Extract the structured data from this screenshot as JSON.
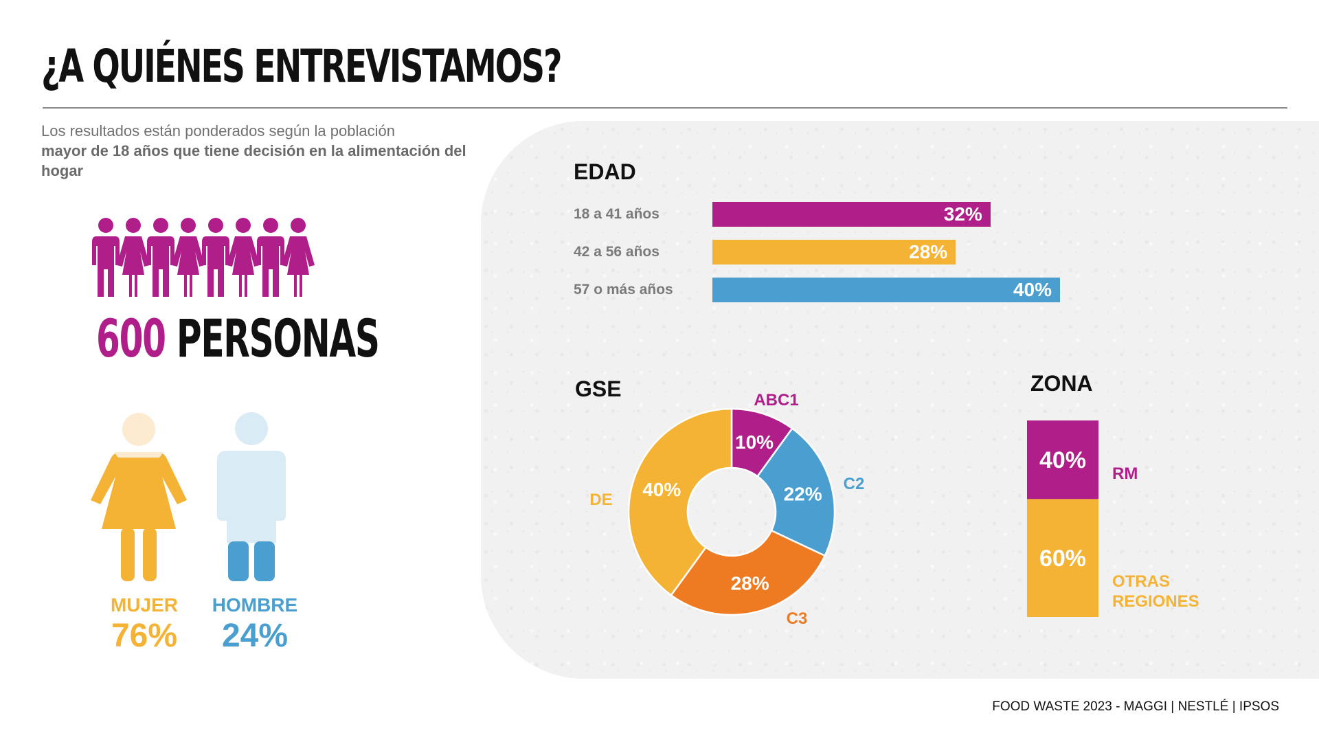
{
  "title": "¿A QUIÉNES ENTREVISTAMOS?",
  "subtitle": {
    "line1": "Los resultados están ponderados según la población",
    "bold": "mayor de 18 años que tiene decisión en la alimentación del hogar"
  },
  "sample": {
    "number": "600",
    "word": "PERSONAS"
  },
  "gender": [
    {
      "label": "MUJER",
      "value": "76%",
      "color": "#f5b335"
    },
    {
      "label": "HOMBRE",
      "value": "24%",
      "color": "#4a9fd0"
    }
  ],
  "colors": {
    "magenta": "#b01e8a",
    "yellow": "#f5b335",
    "blue": "#4a9fd0",
    "orange": "#ee7a22"
  },
  "chart_data": [
    {
      "type": "bar",
      "title": "EDAD",
      "categories": [
        "18 a 41 años",
        "42 a 56 años",
        "57 o más años"
      ],
      "values": [
        32,
        28,
        40
      ],
      "labels": [
        "32%",
        "28%",
        "40%"
      ],
      "colors": [
        "#b01e8a",
        "#f5b335",
        "#4a9fd0"
      ]
    },
    {
      "type": "pie",
      "title": "GSE",
      "categories": [
        "ABC1",
        "C2",
        "C3",
        "DE"
      ],
      "values": [
        10,
        22,
        28,
        40
      ],
      "labels": [
        "10%",
        "22%",
        "28%",
        "40%"
      ],
      "colors": [
        "#b01e8a",
        "#4a9fd0",
        "#ee7a22",
        "#f5b335"
      ]
    },
    {
      "type": "bar",
      "title": "ZONA",
      "categories": [
        "RM",
        "OTRAS REGIONES"
      ],
      "values": [
        40,
        60
      ],
      "labels": [
        "40%",
        "60%"
      ],
      "colors": [
        "#b01e8a",
        "#f5b335"
      ]
    }
  ],
  "footer": "FOOD WASTE 2023 - MAGGI | NESTLÉ | IPSOS"
}
